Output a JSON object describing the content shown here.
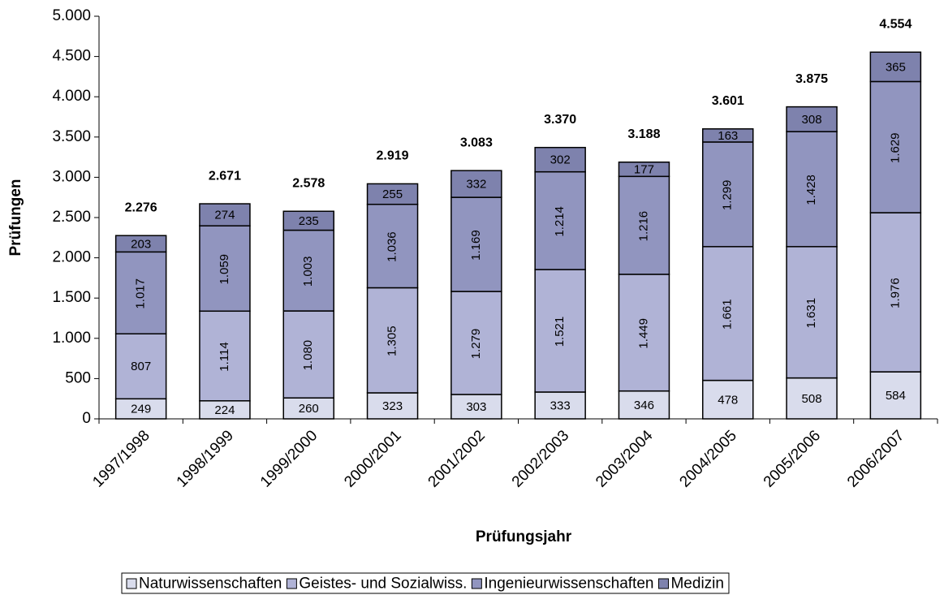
{
  "chart_data": {
    "type": "stacked-bar",
    "xlabel": "Prüfungsjahr",
    "ylabel": "Prüfungen",
    "categories": [
      "1997/1998",
      "1998/1999",
      "1999/2000",
      "2000/2001",
      "2001/2002",
      "2002/2003",
      "2003/2004",
      "2004/2005",
      "2005/2006",
      "2006/2007"
    ],
    "series": [
      {
        "name": "Naturwissenschaften",
        "color": "#d9dcec",
        "values": [
          249,
          224,
          260,
          323,
          303,
          333,
          346,
          478,
          508,
          584
        ],
        "value_labels": [
          "249",
          "224",
          "260",
          "323",
          "303",
          "333",
          "346",
          "478",
          "508",
          "584"
        ]
      },
      {
        "name": "Geistes- und Sozialwiss.",
        "color": "#b0b3d6",
        "values": [
          807,
          1114,
          1080,
          1305,
          1279,
          1521,
          1449,
          1661,
          1631,
          1976
        ],
        "value_labels": [
          "807",
          "1.114",
          "1.080",
          "1.305",
          "1.279",
          "1.521",
          "1.449",
          "1.661",
          "1.631",
          "1.976"
        ]
      },
      {
        "name": "Ingenieurwissenschaften",
        "color": "#9195bf",
        "values": [
          1017,
          1059,
          1003,
          1036,
          1169,
          1214,
          1216,
          1299,
          1428,
          1629
        ],
        "value_labels": [
          "1.017",
          "1.059",
          "1.003",
          "1.036",
          "1.169",
          "1.214",
          "1.216",
          "1.299",
          "1.428",
          "1.629"
        ]
      },
      {
        "name": "Medizin",
        "color": "#7e82ad",
        "values": [
          203,
          274,
          235,
          255,
          332,
          302,
          177,
          163,
          308,
          365
        ],
        "value_labels": [
          "203",
          "274",
          "235",
          "255",
          "332",
          "302",
          "177",
          "163",
          "308",
          "365"
        ]
      }
    ],
    "totals": {
      "values": [
        2276,
        2671,
        2578,
        2919,
        3083,
        3370,
        3188,
        3601,
        3875,
        4554
      ],
      "value_labels": [
        "2.276",
        "2.671",
        "2.578",
        "2.919",
        "3.083",
        "3.370",
        "3.188",
        "3.601",
        "3.875",
        "4.554"
      ]
    },
    "ylim": [
      0,
      5000
    ],
    "yticks": [
      0,
      500,
      {
        "value": 1000,
        "label": "1.000"
      },
      {
        "value": 1500,
        "label": "1.500"
      },
      {
        "value": 2000,
        "label": "2.000"
      },
      {
        "value": 2500,
        "label": "2.500"
      },
      {
        "value": 3000,
        "label": "3.000"
      },
      {
        "value": 3500,
        "label": "3.500"
      },
      {
        "value": 4000,
        "label": "4.000"
      },
      {
        "value": 4500,
        "label": "4.500"
      },
      {
        "value": 5000,
        "label": "5.000"
      }
    ],
    "grid": false,
    "legend": "bottom"
  }
}
